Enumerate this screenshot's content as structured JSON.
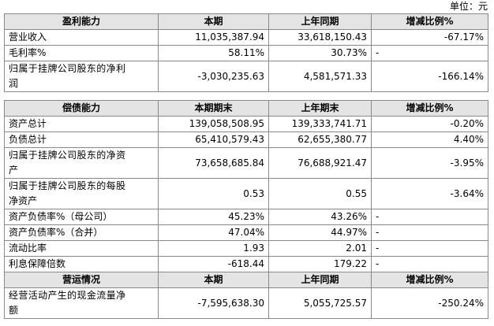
{
  "unit": "单位：元",
  "tables": [
    {
      "header": [
        "盈利能力",
        "本期",
        "上年同期",
        "增减比例%"
      ],
      "rows": [
        [
          "营业收入",
          "11,035,387.94",
          "33,618,150.43",
          "-67.17%"
        ],
        [
          "毛利率%",
          "58.11%",
          "30.73%",
          "-"
        ],
        [
          "归属于挂牌公司股东的净利润",
          "-3,030,235.63",
          "4,581,571.33",
          "-166.14%"
        ]
      ]
    },
    {
      "header": [
        "偿债能力",
        "本期期末",
        "上年期末",
        "增减比例%"
      ],
      "rows": [
        [
          "资产总计",
          "139,058,508.95",
          "139,333,741.71",
          "-0.20%"
        ],
        [
          "负债总计",
          "65,410,579.43",
          "62,655,380.77",
          "4.40%"
        ],
        [
          "归属于挂牌公司股东的净资产",
          "73,658,685.84",
          "76,688,921.47",
          "-3.95%"
        ],
        [
          "归属于挂牌公司股东的每股净资产",
          "0.53",
          "0.55",
          "-3.64%"
        ],
        [
          "资产负债率%（母公司）",
          "45.23%",
          "43.26%",
          "-"
        ],
        [
          "资产负债率%（合并）",
          "47.04%",
          "44.97%",
          "-"
        ],
        [
          "流动比率",
          "1.93",
          "2.01",
          "-"
        ],
        [
          "利息保障倍数",
          "-618.44",
          "179.22",
          "-"
        ]
      ]
    },
    {
      "header": [
        "营运情况",
        "本期",
        "上年同期",
        "增减比例%"
      ],
      "rows": [
        [
          "经营活动产生的现金流量净额",
          "-7,595,638.30",
          "5,055,725.57",
          "-250.24%"
        ]
      ]
    }
  ]
}
